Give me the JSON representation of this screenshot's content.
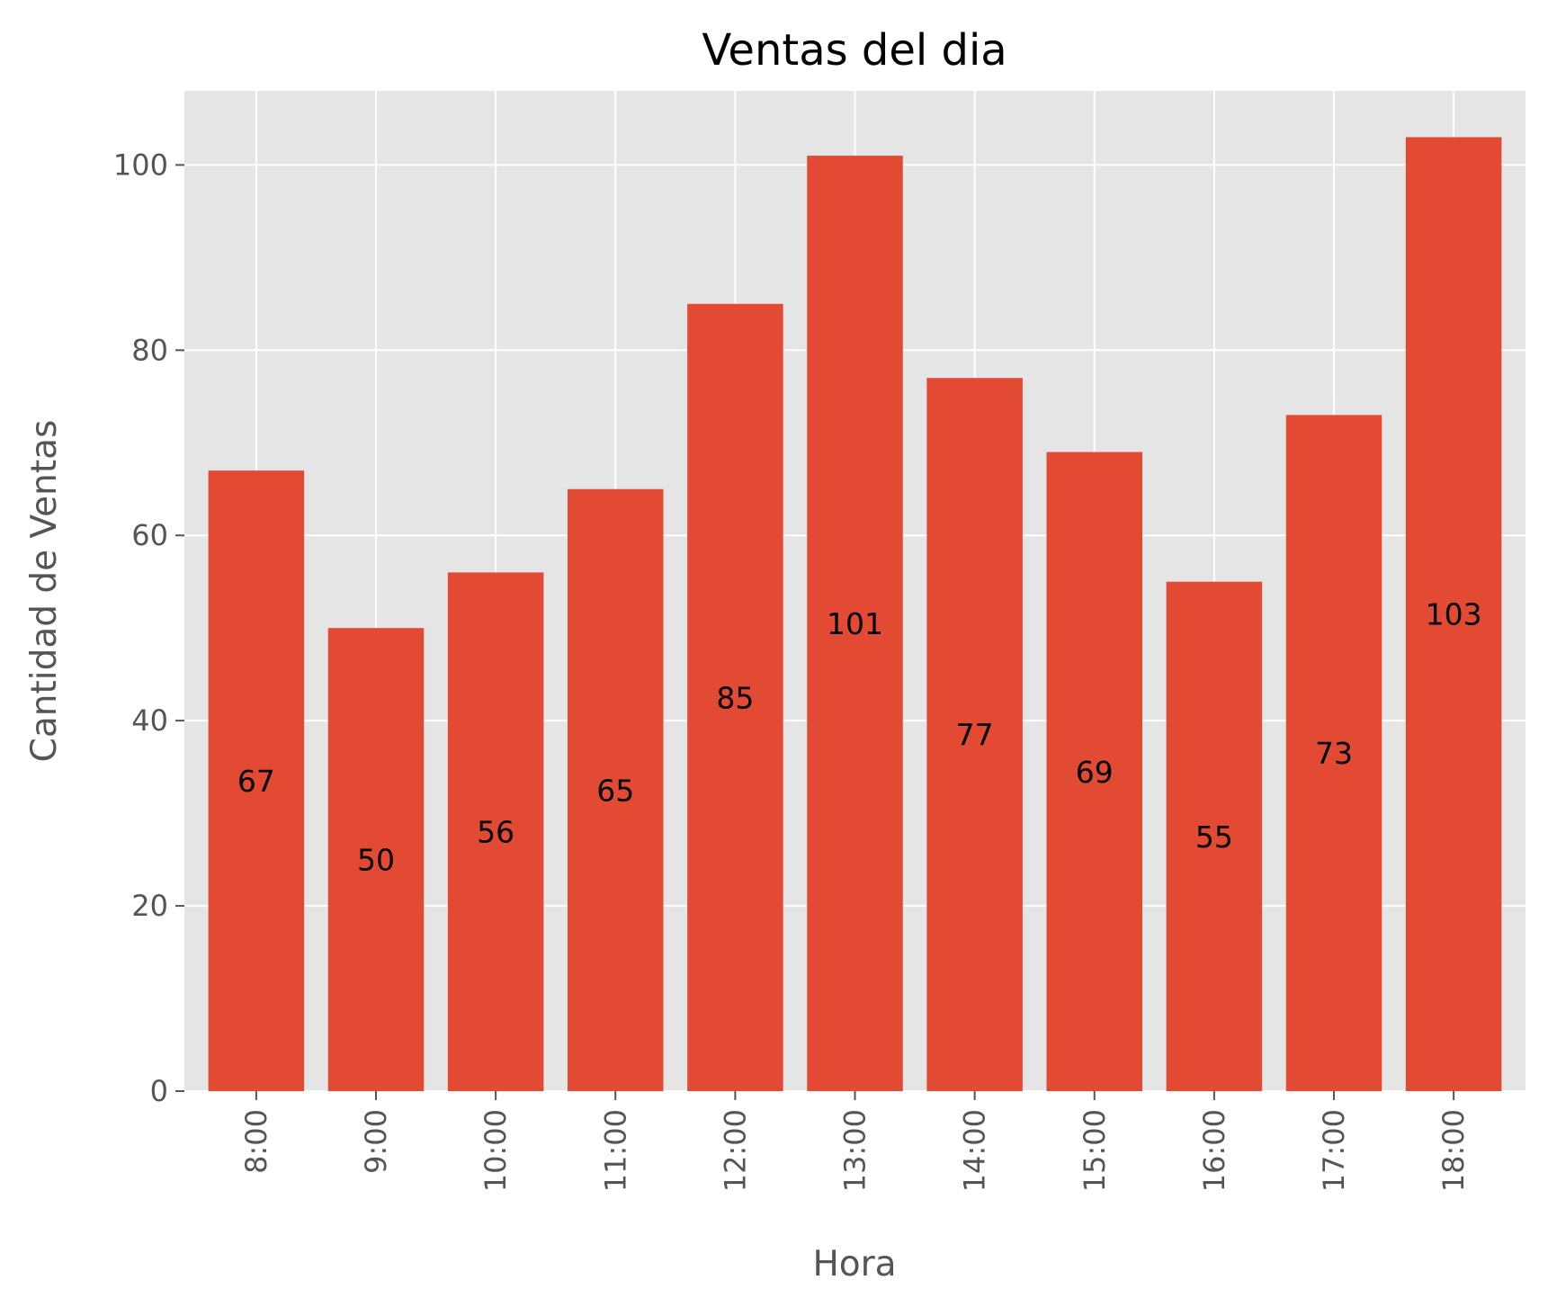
{
  "chart_data": {
    "type": "bar",
    "title": "Ventas del dia",
    "xlabel": "Hora",
    "ylabel": "Cantidad de Ventas",
    "categories": [
      "8:00",
      "9:00",
      "10:00",
      "11:00",
      "12:00",
      "13:00",
      "14:00",
      "15:00",
      "16:00",
      "17:00",
      "18:00"
    ],
    "values": [
      67,
      50,
      56,
      65,
      85,
      101,
      77,
      69,
      55,
      73,
      103
    ],
    "ylim": [
      0,
      108
    ],
    "yticks": [
      0,
      20,
      40,
      60,
      80,
      100
    ],
    "grid": true,
    "bar_labels": true,
    "x_tick_rotation": "vertical",
    "colors": {
      "bar": "#E24A33",
      "plot_background": "#E5E5E5",
      "grid": "#FFFFFF"
    }
  }
}
